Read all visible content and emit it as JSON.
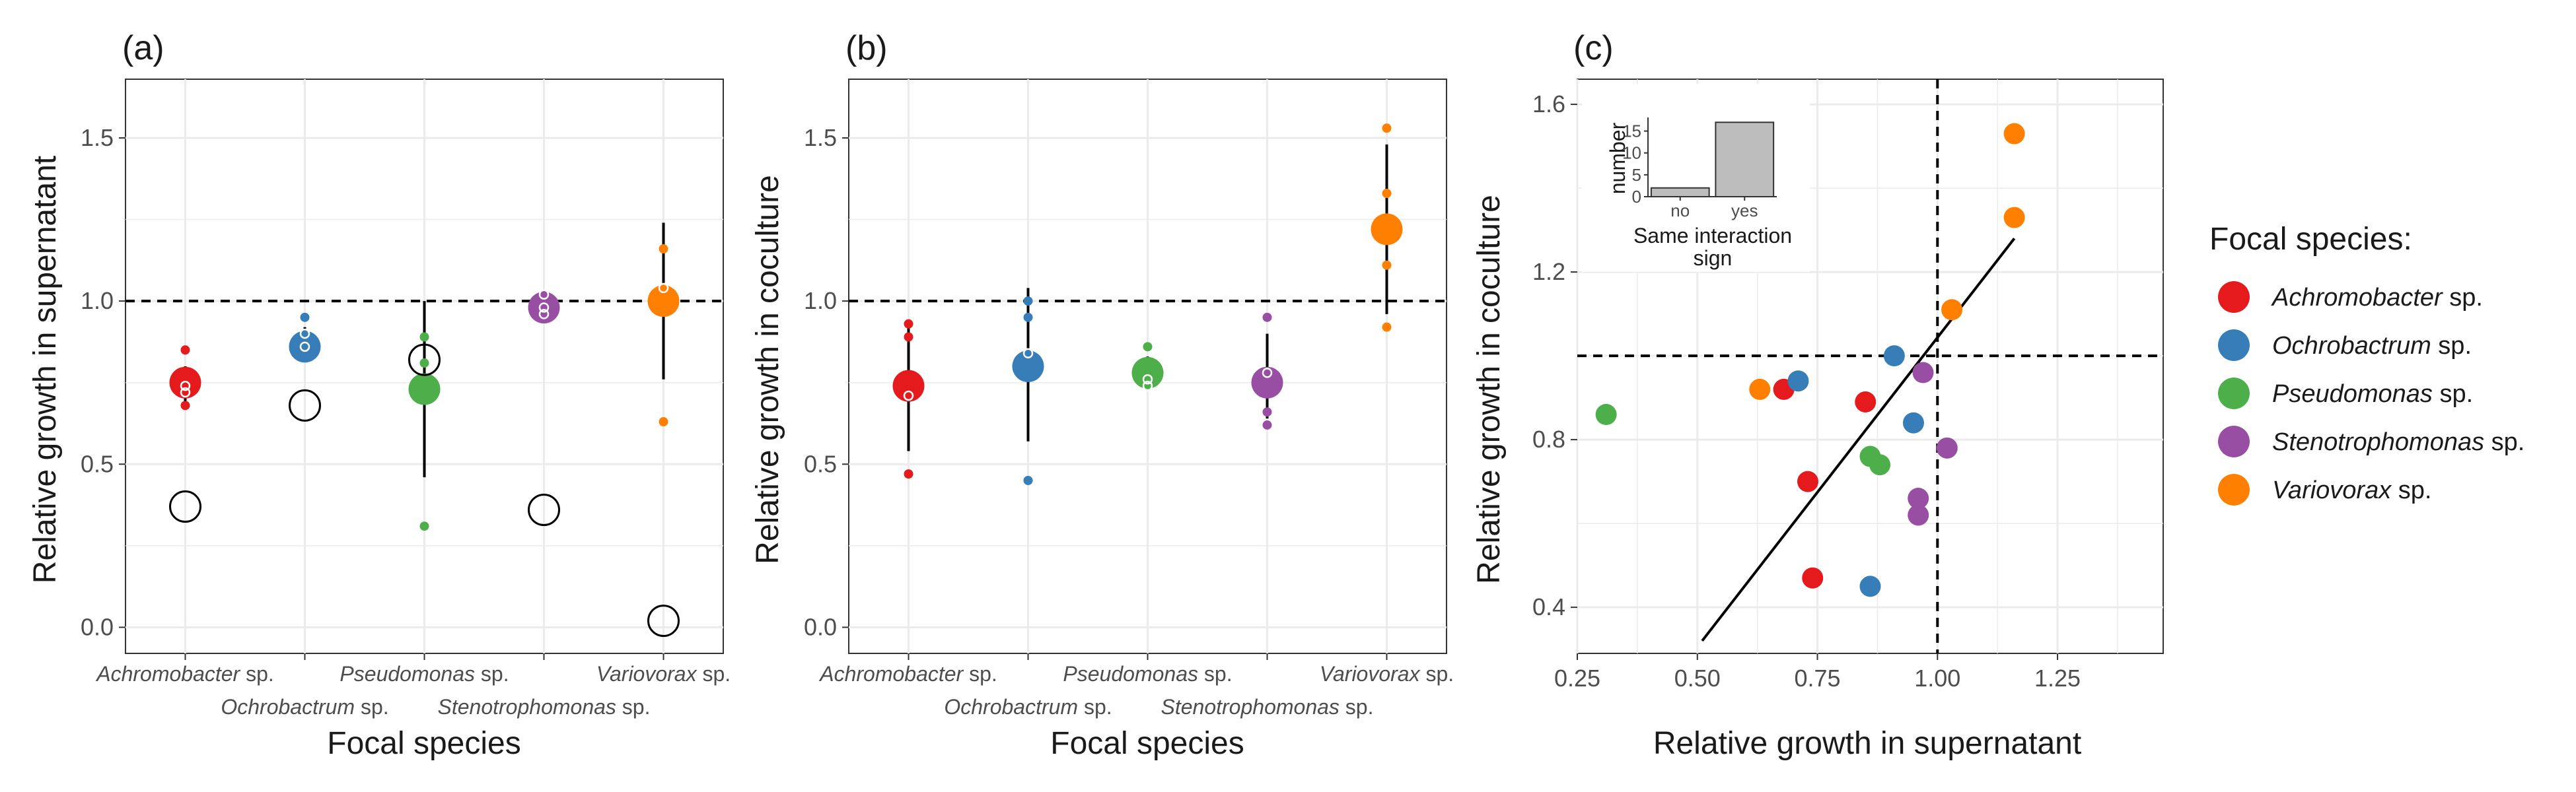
{
  "colors": {
    "Achromobacter": "#e41a1c",
    "Ochrobactrum": "#377eb8",
    "Pseudomonas": "#4daf4a",
    "Stenotrophomonas": "#984ea3",
    "Variovorax": "#ff7f00",
    "grid": "#ebebeb",
    "inset_bar": "#bdbdbd"
  },
  "legend": {
    "title": "Focal species:",
    "placement": "right",
    "items": [
      {
        "genus": "Achromobacter",
        "suffix": " sp."
      },
      {
        "genus": "Ochrobactrum",
        "suffix": " sp."
      },
      {
        "genus": "Pseudomonas",
        "suffix": " sp."
      },
      {
        "genus": "Stenotrophomonas",
        "suffix": " sp."
      },
      {
        "genus": "Variovorax",
        "suffix": " sp."
      }
    ]
  },
  "chart_data": [
    {
      "panel": "(a)",
      "type": "scatter",
      "xlabel": "Focal species",
      "ylabel": "Relative growth in supernatant",
      "ylim": [
        -0.08,
        1.68
      ],
      "yticks": [
        0.0,
        0.5,
        1.0,
        1.5
      ],
      "ytick_labels": [
        "0.0",
        "0.5",
        "1.0",
        "1.5"
      ],
      "reference_line": 1.0,
      "grid": true,
      "categories": [
        "Achromobacter",
        "Ochrobactrum",
        "Pseudomonas",
        "Stenotrophomonas",
        "Variovorax"
      ],
      "series": [
        {
          "category": "Achromobacter",
          "mean": 0.75,
          "ci": [
            0.69,
            0.8
          ],
          "points": [
            0.85,
            0.74,
            0.72,
            0.68
          ],
          "open_circle": 0.37
        },
        {
          "category": "Ochrobactrum",
          "mean": 0.86,
          "ci": [
            0.82,
            0.92
          ],
          "points": [
            0.95,
            0.9,
            0.86
          ],
          "open_circle": 0.68
        },
        {
          "category": "Pseudomonas",
          "mean": 0.73,
          "ci": [
            0.46,
            1.0
          ],
          "points": [
            0.89,
            0.81,
            0.31
          ],
          "open_circle": 0.82
        },
        {
          "category": "Stenotrophomonas",
          "mean": 0.98,
          "ci": [
            0.95,
            1.01
          ],
          "points": [
            1.02,
            0.98,
            0.96
          ],
          "open_circle": 0.36
        },
        {
          "category": "Variovorax",
          "mean": 1.0,
          "ci": [
            0.76,
            1.24
          ],
          "points": [
            1.16,
            1.04,
            0.63
          ],
          "open_circle": 0.02
        }
      ]
    },
    {
      "panel": "(b)",
      "type": "scatter",
      "xlabel": "Focal species",
      "ylabel": "Relative growth in coculture",
      "ylim": [
        -0.08,
        1.68
      ],
      "yticks": [
        0.0,
        0.5,
        1.0,
        1.5
      ],
      "ytick_labels": [
        "0.0",
        "0.5",
        "1.0",
        "1.5"
      ],
      "reference_line": 1.0,
      "grid": true,
      "categories": [
        "Achromobacter",
        "Ochrobactrum",
        "Pseudomonas",
        "Stenotrophomonas",
        "Variovorax"
      ],
      "series": [
        {
          "category": "Achromobacter",
          "mean": 0.74,
          "ci": [
            0.54,
            0.94
          ],
          "points": [
            0.93,
            0.89,
            0.71,
            0.47
          ]
        },
        {
          "category": "Ochrobactrum",
          "mean": 0.8,
          "ci": [
            0.57,
            1.04
          ],
          "points": [
            1.0,
            0.95,
            0.84,
            0.45
          ]
        },
        {
          "category": "Pseudomonas",
          "mean": 0.78,
          "ci": [
            0.74,
            0.83
          ],
          "points": [
            0.86,
            0.76,
            0.74
          ]
        },
        {
          "category": "Stenotrophomonas",
          "mean": 0.75,
          "ci": [
            0.64,
            0.9
          ],
          "points": [
            0.95,
            0.78,
            0.66,
            0.62
          ]
        },
        {
          "category": "Variovorax",
          "mean": 1.22,
          "ci": [
            0.96,
            1.48
          ],
          "points": [
            1.53,
            1.33,
            1.11,
            0.92
          ]
        }
      ]
    },
    {
      "panel": "(c)",
      "type": "scatter",
      "xlabel": "Relative growth in supernatant",
      "ylabel": "Relative growth in coculture",
      "xlim": [
        0.25,
        1.47
      ],
      "ylim": [
        0.29,
        1.66
      ],
      "xticks": [
        0.25,
        0.5,
        0.75,
        1.0,
        1.25
      ],
      "xtick_labels": [
        "0.25",
        "0.50",
        "0.75",
        "1.00",
        "1.25"
      ],
      "yticks": [
        0.4,
        0.8,
        1.2,
        1.6
      ],
      "ytick_labels": [
        "0.4",
        "0.8",
        "1.2",
        "1.6"
      ],
      "vline": 1.0,
      "hline": 1.0,
      "grid": true,
      "regression": {
        "x": [
          0.51,
          1.16
        ],
        "y": [
          0.32,
          1.28
        ]
      },
      "points": [
        {
          "species": "Achromobacter",
          "x": 0.68,
          "y": 0.92
        },
        {
          "species": "Achromobacter",
          "x": 0.85,
          "y": 0.89
        },
        {
          "species": "Achromobacter",
          "x": 0.73,
          "y": 0.7
        },
        {
          "species": "Achromobacter",
          "x": 0.74,
          "y": 0.47
        },
        {
          "species": "Ochrobactrum",
          "x": 0.71,
          "y": 0.94
        },
        {
          "species": "Ochrobactrum",
          "x": 0.91,
          "y": 1.0
        },
        {
          "species": "Ochrobactrum",
          "x": 0.95,
          "y": 0.84
        },
        {
          "species": "Ochrobactrum",
          "x": 0.86,
          "y": 0.45
        },
        {
          "species": "Pseudomonas",
          "x": 0.31,
          "y": 0.86
        },
        {
          "species": "Pseudomonas",
          "x": 0.86,
          "y": 0.76
        },
        {
          "species": "Pseudomonas",
          "x": 0.88,
          "y": 0.74
        },
        {
          "species": "Stenotrophomonas",
          "x": 0.97,
          "y": 0.96
        },
        {
          "species": "Stenotrophomonas",
          "x": 1.02,
          "y": 0.78
        },
        {
          "species": "Stenotrophomonas",
          "x": 0.96,
          "y": 0.66
        },
        {
          "species": "Stenotrophomonas",
          "x": 0.96,
          "y": 0.62
        },
        {
          "species": "Variovorax",
          "x": 0.63,
          "y": 0.92
        },
        {
          "species": "Variovorax",
          "x": 1.03,
          "y": 1.11
        },
        {
          "species": "Variovorax",
          "x": 1.16,
          "y": 1.53
        },
        {
          "species": "Variovorax",
          "x": 1.16,
          "y": 1.33
        }
      ],
      "inset": {
        "type": "bar",
        "xlabel": "Same interaction sign",
        "ylabel": "number",
        "categories": [
          "no",
          "yes"
        ],
        "values": [
          2,
          17
        ],
        "ylim": [
          0,
          17.5
        ],
        "yticks": [
          0,
          5,
          10,
          15
        ],
        "ytick_labels": [
          "0",
          "5",
          "10",
          "15"
        ]
      }
    }
  ]
}
